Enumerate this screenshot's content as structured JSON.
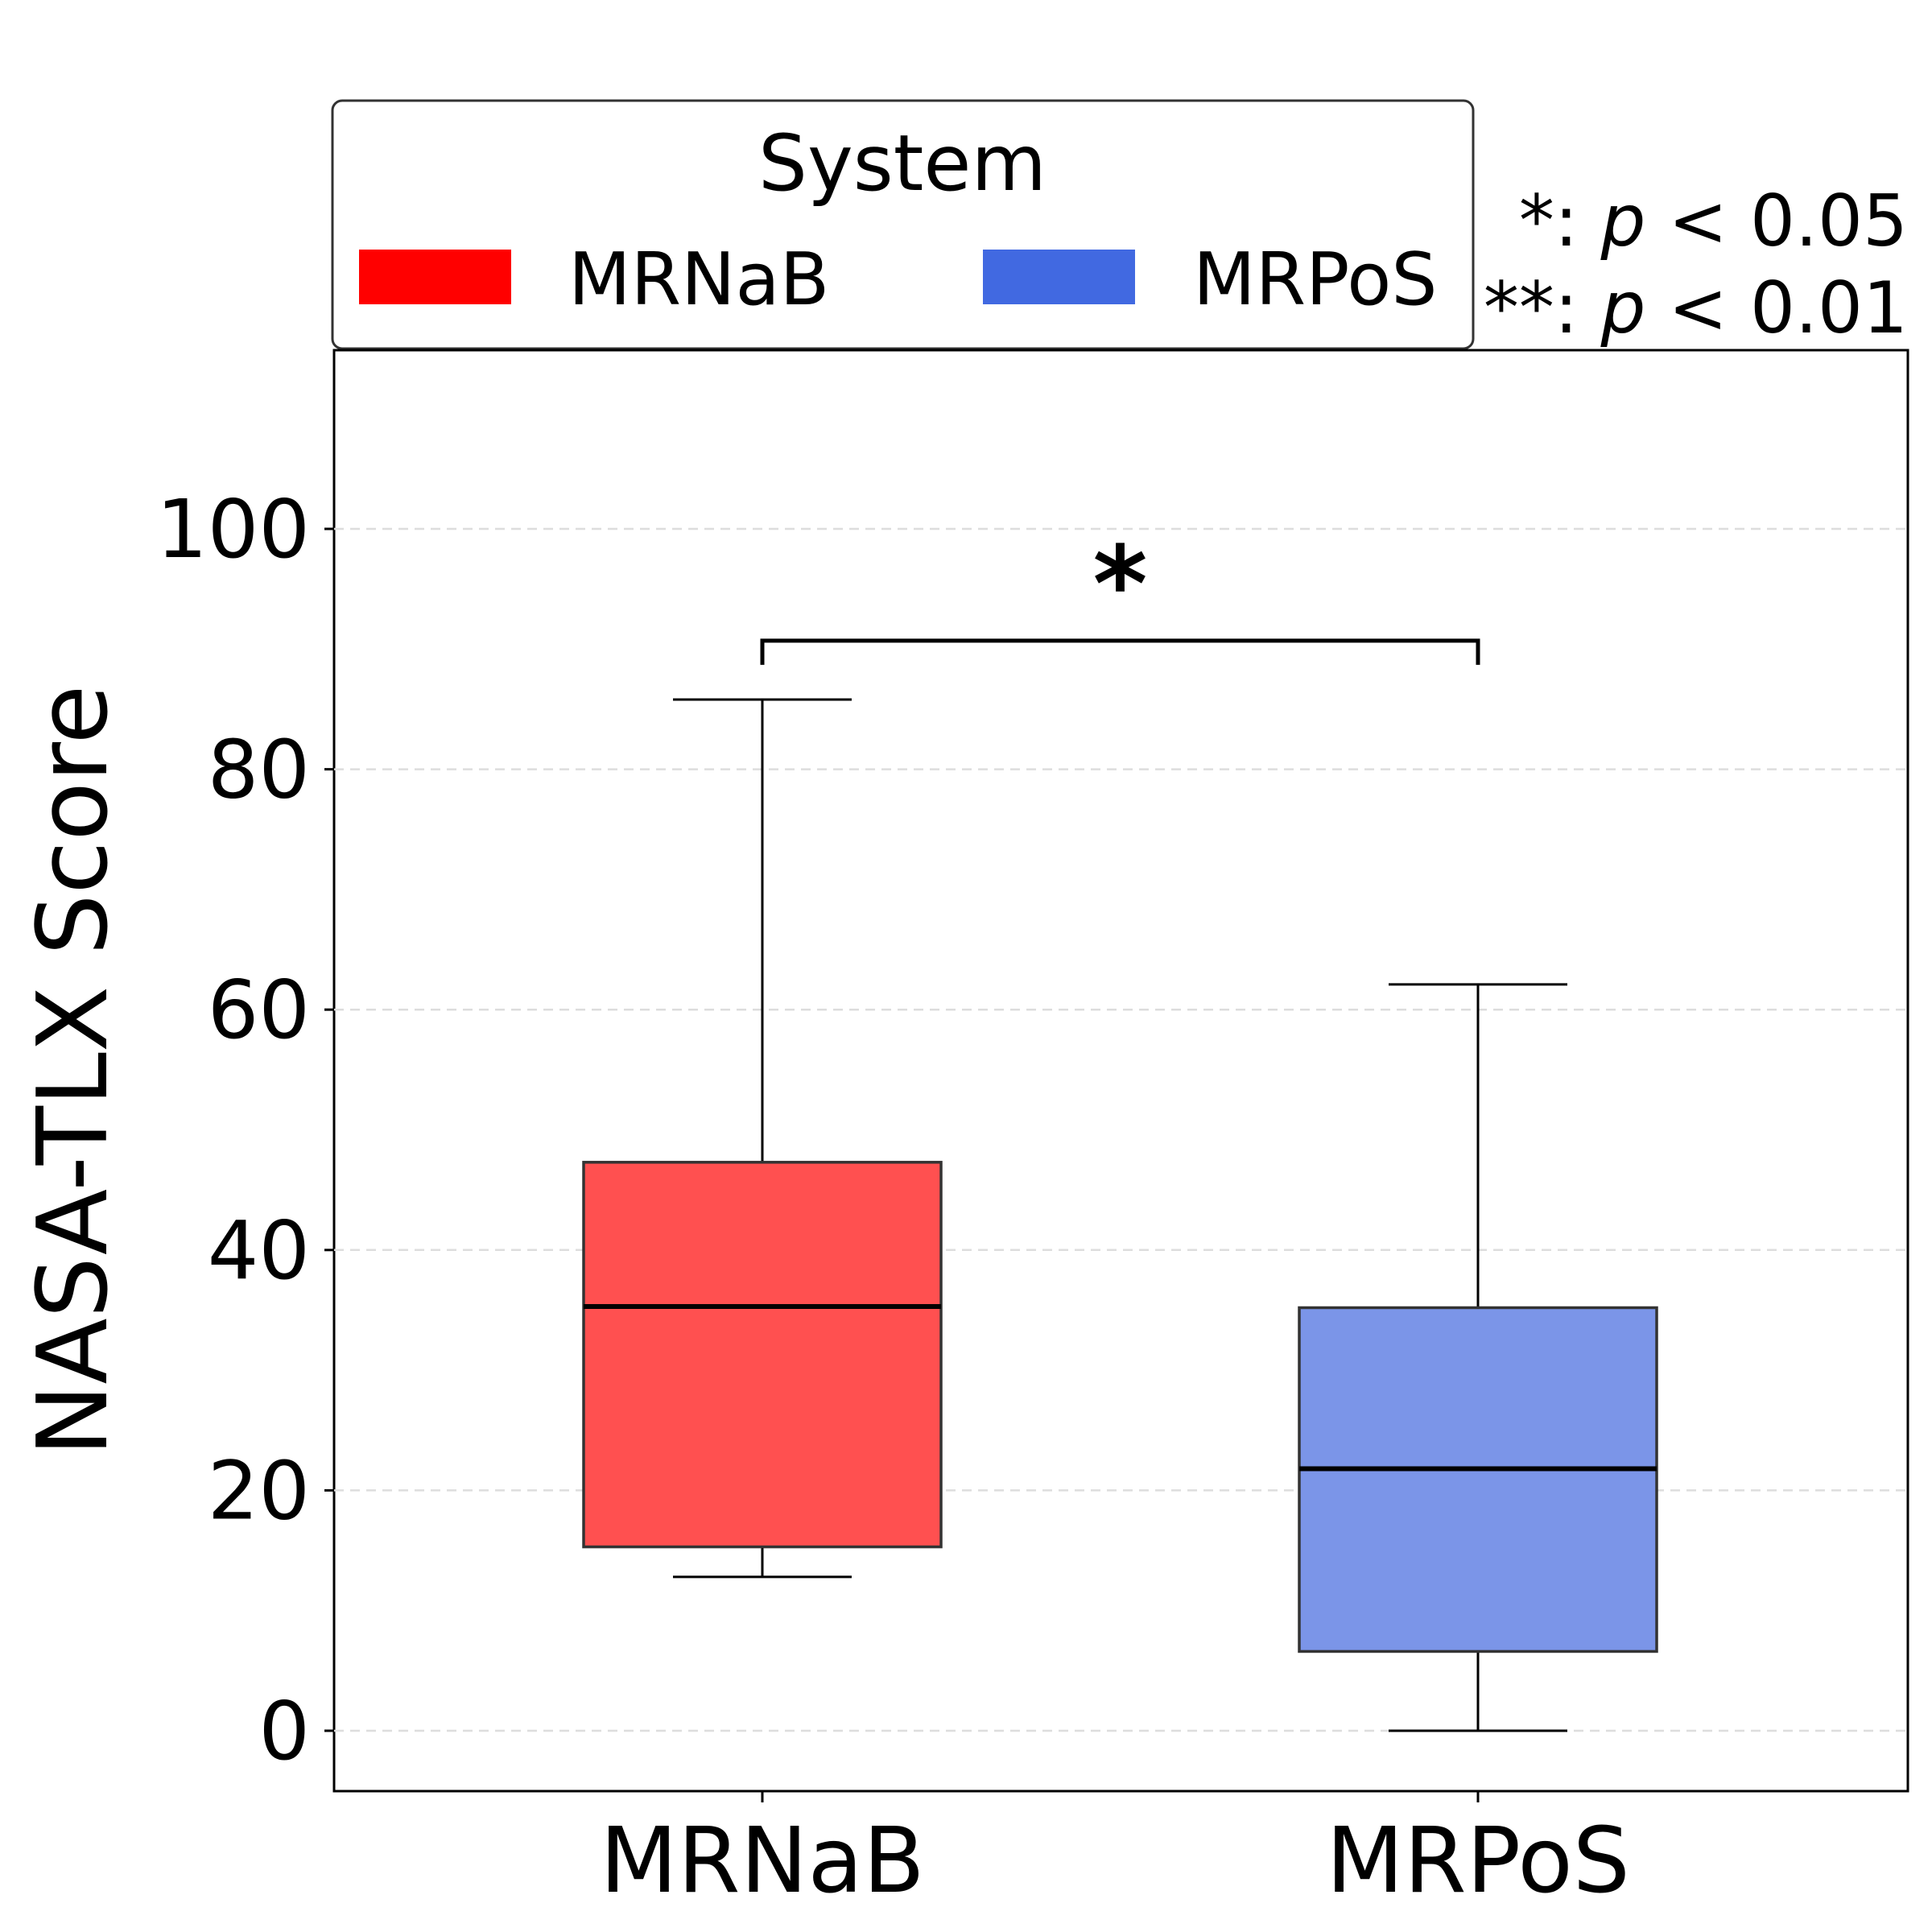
{
  "chart_data": {
    "type": "boxplot",
    "ylabel": "NASA-TLX Score",
    "ylim": [
      -5,
      115
    ],
    "yticks": [
      0,
      20,
      40,
      60,
      80,
      100
    ],
    "grid": "y-dashed",
    "categories": [
      "MRNaB",
      "MRPoS"
    ],
    "boxes": [
      {
        "name": "MRNaB",
        "whisker_low": 12.8,
        "q1": 15.3,
        "median": 35.3,
        "q3": 47.3,
        "whisker_high": 85.8,
        "color": "#ff0000",
        "fill": "#ff5050"
      },
      {
        "name": "MRPoS",
        "whisker_low": 0,
        "q1": 6.6,
        "median": 21.8,
        "q3": 35.2,
        "whisker_high": 62.1,
        "color": "#4169e1",
        "fill": "#7b95e8"
      }
    ],
    "legend": {
      "title": "System",
      "placement": "top-center",
      "entries": [
        {
          "label": "MRNaB",
          "color": "#ff0000"
        },
        {
          "label": "MRPoS",
          "color": "#4169e1"
        }
      ]
    },
    "significance": {
      "bracket": {
        "between": [
          "MRNaB",
          "MRPoS"
        ],
        "y": 90.7,
        "marker": "*"
      },
      "note_lines": [
        {
          "stars": "*: ",
          "p": "p",
          "rest": " < 0.05"
        },
        {
          "stars": "**: ",
          "p": "p",
          "rest": " < 0.01"
        }
      ]
    }
  }
}
